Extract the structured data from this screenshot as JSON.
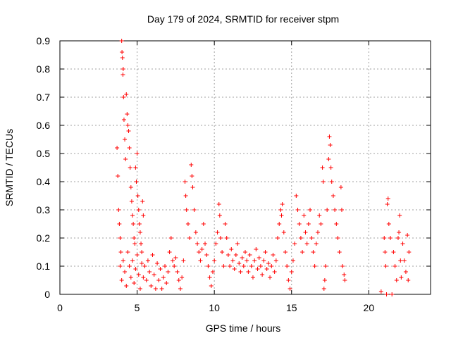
{
  "chart_data": {
    "type": "scatter",
    "title": "Day 179 of 2024, SRMTID for receiver stpm",
    "xlabel": "GPS time / hours",
    "ylabel": "SRMTID / TECUs",
    "xlim": [
      0,
      24
    ],
    "ylim": [
      0,
      0.9
    ],
    "x_ticks": [
      0,
      5,
      10,
      15,
      20
    ],
    "x_tick_labels": [
      "0",
      "5",
      "10",
      "15",
      "20"
    ],
    "y_ticks": [
      0,
      0.1,
      0.2,
      0.3,
      0.4,
      0.5,
      0.6,
      0.7,
      0.8,
      0.9
    ],
    "y_tick_labels": [
      "0",
      "0.1",
      "0.2",
      "0.3",
      "0.4",
      "0.5",
      "0.6",
      "0.7",
      "0.8",
      "0.9"
    ],
    "grid": true,
    "marker": "+",
    "color": "#ff0000",
    "series": [
      {
        "name": "SRMTID",
        "points": [
          [
            3.7,
            0.52
          ],
          [
            3.75,
            0.42
          ],
          [
            3.8,
            0.3
          ],
          [
            3.85,
            0.25
          ],
          [
            3.9,
            0.2
          ],
          [
            3.95,
            0.15
          ],
          [
            4.0,
            0.9
          ],
          [
            4.02,
            0.86
          ],
          [
            4.05,
            0.84
          ],
          [
            4.08,
            0.78
          ],
          [
            4.1,
            0.8
          ],
          [
            4.12,
            0.7
          ],
          [
            4.15,
            0.62
          ],
          [
            4.2,
            0.55
          ],
          [
            4.25,
            0.48
          ],
          [
            4.3,
            0.71
          ],
          [
            4.35,
            0.64
          ],
          [
            4.4,
            0.6
          ],
          [
            4.45,
            0.58
          ],
          [
            4.5,
            0.52
          ],
          [
            4.55,
            0.45
          ],
          [
            4.6,
            0.38
          ],
          [
            4.65,
            0.33
          ],
          [
            4.7,
            0.28
          ],
          [
            4.75,
            0.25
          ],
          [
            4.8,
            0.2
          ],
          [
            4.85,
            0.18
          ],
          [
            4.9,
            0.45
          ],
          [
            4.95,
            0.4
          ],
          [
            5.0,
            0.5
          ],
          [
            5.05,
            0.35
          ],
          [
            5.1,
            0.3
          ],
          [
            5.15,
            0.25
          ],
          [
            5.2,
            0.22
          ],
          [
            5.25,
            0.18
          ],
          [
            5.3,
            0.15
          ],
          [
            5.35,
            0.33
          ],
          [
            5.4,
            0.28
          ],
          [
            3.9,
            0.1
          ],
          [
            4.0,
            0.05
          ],
          [
            4.1,
            0.12
          ],
          [
            4.2,
            0.08
          ],
          [
            4.3,
            0.03
          ],
          [
            4.4,
            0.15
          ],
          [
            4.5,
            0.1
          ],
          [
            4.6,
            0.06
          ],
          [
            4.7,
            0.12
          ],
          [
            4.8,
            0.04
          ],
          [
            4.9,
            0.09
          ],
          [
            5.0,
            0.14
          ],
          [
            5.1,
            0.07
          ],
          [
            5.2,
            0.02
          ],
          [
            5.3,
            0.11
          ],
          [
            5.4,
            0.06
          ],
          [
            5.5,
            0.1
          ],
          [
            5.6,
            0.05
          ],
          [
            5.7,
            0.12
          ],
          [
            5.8,
            0.08
          ],
          [
            5.9,
            0.03
          ],
          [
            6.0,
            0.14
          ],
          [
            6.1,
            0.07
          ],
          [
            6.2,
            0.02
          ],
          [
            6.3,
            0.11
          ],
          [
            6.4,
            0.05
          ],
          [
            6.5,
            0.09
          ],
          [
            6.6,
            0.02
          ],
          [
            6.7,
            0.06
          ],
          [
            6.8,
            0.1
          ],
          [
            6.9,
            0.04
          ],
          [
            7.0,
            0.08
          ],
          [
            7.1,
            0.15
          ],
          [
            7.2,
            0.2
          ],
          [
            7.3,
            0.12
          ],
          [
            7.4,
            0.1
          ],
          [
            7.5,
            0.13
          ],
          [
            7.6,
            0.08
          ],
          [
            7.7,
            0.05
          ],
          [
            7.8,
            0.02
          ],
          [
            7.9,
            0.06
          ],
          [
            8.0,
            0.12
          ],
          [
            8.1,
            0.4
          ],
          [
            8.15,
            0.35
          ],
          [
            8.2,
            0.3
          ],
          [
            8.3,
            0.25
          ],
          [
            8.4,
            0.2
          ],
          [
            8.5,
            0.46
          ],
          [
            8.55,
            0.42
          ],
          [
            8.6,
            0.38
          ],
          [
            8.7,
            0.3
          ],
          [
            8.8,
            0.22
          ],
          [
            8.9,
            0.18
          ],
          [
            9.0,
            0.15
          ],
          [
            9.1,
            0.12
          ],
          [
            9.2,
            0.16
          ],
          [
            9.3,
            0.25
          ],
          [
            9.4,
            0.18
          ],
          [
            9.5,
            0.14
          ],
          [
            9.6,
            0.1
          ],
          [
            9.7,
            0.06
          ],
          [
            9.8,
            0.03
          ],
          [
            9.9,
            0.08
          ],
          [
            10.0,
            0.12
          ],
          [
            10.1,
            0.18
          ],
          [
            10.2,
            0.22
          ],
          [
            10.3,
            0.32
          ],
          [
            10.35,
            0.28
          ],
          [
            10.4,
            0.2
          ],
          [
            10.5,
            0.15
          ],
          [
            10.6,
            0.1
          ],
          [
            10.7,
            0.25
          ],
          [
            10.8,
            0.2
          ],
          [
            10.9,
            0.14
          ],
          [
            11.0,
            0.1
          ],
          [
            11.1,
            0.16
          ],
          [
            11.2,
            0.12
          ],
          [
            11.3,
            0.09
          ],
          [
            11.4,
            0.14
          ],
          [
            11.5,
            0.18
          ],
          [
            11.6,
            0.11
          ],
          [
            11.7,
            0.08
          ],
          [
            11.8,
            0.13
          ],
          [
            11.9,
            0.1
          ],
          [
            12.0,
            0.15
          ],
          [
            12.1,
            0.12
          ],
          [
            12.2,
            0.08
          ],
          [
            12.3,
            0.14
          ],
          [
            12.4,
            0.1
          ],
          [
            12.5,
            0.06
          ],
          [
            12.6,
            0.12
          ],
          [
            12.7,
            0.16
          ],
          [
            12.8,
            0.09
          ],
          [
            12.9,
            0.13
          ],
          [
            13.0,
            0.1
          ],
          [
            13.1,
            0.07
          ],
          [
            13.2,
            0.12
          ],
          [
            13.3,
            0.15
          ],
          [
            13.4,
            0.09
          ],
          [
            13.5,
            0.11
          ],
          [
            13.6,
            0.06
          ],
          [
            13.7,
            0.1
          ],
          [
            13.8,
            0.14
          ],
          [
            13.9,
            0.08
          ],
          [
            14.0,
            0.12
          ],
          [
            14.1,
            0.2
          ],
          [
            14.2,
            0.25
          ],
          [
            14.3,
            0.3
          ],
          [
            14.35,
            0.28
          ],
          [
            14.4,
            0.32
          ],
          [
            14.5,
            0.22
          ],
          [
            14.6,
            0.15
          ],
          [
            14.7,
            0.1
          ],
          [
            14.8,
            0.05
          ],
          [
            14.9,
            0.02
          ],
          [
            15.0,
            0.08
          ],
          [
            15.1,
            0.12
          ],
          [
            15.2,
            0.18
          ],
          [
            15.3,
            0.35
          ],
          [
            15.4,
            0.3
          ],
          [
            15.5,
            0.25
          ],
          [
            15.6,
            0.2
          ],
          [
            15.7,
            0.15
          ],
          [
            15.8,
            0.28
          ],
          [
            15.9,
            0.22
          ],
          [
            16.0,
            0.18
          ],
          [
            16.1,
            0.25
          ],
          [
            16.2,
            0.3
          ],
          [
            16.3,
            0.2
          ],
          [
            16.4,
            0.15
          ],
          [
            16.5,
            0.1
          ],
          [
            16.6,
            0.18
          ],
          [
            16.7,
            0.22
          ],
          [
            16.8,
            0.28
          ],
          [
            16.9,
            0.25
          ],
          [
            17.0,
            0.45
          ],
          [
            17.05,
            0.4
          ],
          [
            17.1,
            0.02
          ],
          [
            17.15,
            0.05
          ],
          [
            17.2,
            0.1
          ],
          [
            17.3,
            0.3
          ],
          [
            17.4,
            0.48
          ],
          [
            17.45,
            0.56
          ],
          [
            17.5,
            0.53
          ],
          [
            17.55,
            0.45
          ],
          [
            17.6,
            0.4
          ],
          [
            17.7,
            0.35
          ],
          [
            17.8,
            0.3
          ],
          [
            17.9,
            0.25
          ],
          [
            18.0,
            0.2
          ],
          [
            18.1,
            0.15
          ],
          [
            18.2,
            0.38
          ],
          [
            18.25,
            0.3
          ],
          [
            18.3,
            0.1
          ],
          [
            18.4,
            0.07
          ],
          [
            18.45,
            0.05
          ],
          [
            20.8,
            0.01
          ],
          [
            21.0,
            0.2
          ],
          [
            21.05,
            0.15
          ],
          [
            21.1,
            0.1
          ],
          [
            21.15,
            0.0
          ],
          [
            21.2,
            0.32
          ],
          [
            21.25,
            0.34
          ],
          [
            21.3,
            0.25
          ],
          [
            21.4,
            0.2
          ],
          [
            21.5,
            0.0
          ],
          [
            21.6,
            0.15
          ],
          [
            21.7,
            0.1
          ],
          [
            21.8,
            0.05
          ],
          [
            21.9,
            0.2
          ],
          [
            21.95,
            0.22
          ],
          [
            22.0,
            0.28
          ],
          [
            22.05,
            0.12
          ],
          [
            22.1,
            0.06
          ],
          [
            22.2,
            0.18
          ],
          [
            22.3,
            0.12
          ],
          [
            22.4,
            0.08
          ],
          [
            22.5,
            0.21
          ],
          [
            22.55,
            0.05
          ],
          [
            22.6,
            0.15
          ]
        ]
      }
    ]
  }
}
